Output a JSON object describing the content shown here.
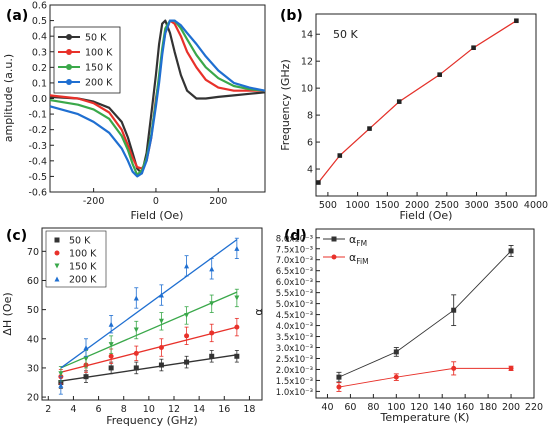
{
  "chart_data": [
    {
      "id": "a",
      "panel_label": "(a)",
      "type": "line",
      "xlabel": "Field (Oe)",
      "ylabel": "amplitude (a.u.)",
      "xlim": [
        -340,
        350
      ],
      "ylim": [
        -0.6,
        0.6
      ],
      "xticks": [
        -200,
        0,
        200
      ],
      "yticks": [
        -0.6,
        -0.5,
        -0.4,
        -0.3,
        -0.2,
        -0.1,
        0.0,
        0.1,
        0.2,
        0.3,
        0.4,
        0.5,
        0.6
      ],
      "ytick_labels": [
        "-0.6",
        "-0.5",
        "-0.4",
        "-0.3",
        "-0.2",
        "-0.1",
        "0.0",
        "0.1",
        "0.2",
        "0.3",
        "0.4",
        "0.5",
        "0.6"
      ],
      "legend_position": "top-left",
      "series": [
        {
          "name": "50 K",
          "color": "#333333",
          "x": [
            -340,
            -250,
            -200,
            -150,
            -110,
            -90,
            -75,
            -60,
            -45,
            -30,
            -15,
            0,
            10,
            20,
            30,
            45,
            60,
            80,
            100,
            130,
            160,
            200,
            250,
            300,
            350
          ],
          "y": [
            0.01,
            0.0,
            -0.02,
            -0.06,
            -0.15,
            -0.25,
            -0.35,
            -0.45,
            -0.48,
            -0.35,
            -0.1,
            0.15,
            0.35,
            0.48,
            0.5,
            0.42,
            0.3,
            0.15,
            0.05,
            0.0,
            0.0,
            0.01,
            0.02,
            0.03,
            0.04
          ]
        },
        {
          "name": "100 K",
          "color": "#e8312a",
          "x": [
            -340,
            -250,
            -200,
            -150,
            -110,
            -90,
            -75,
            -60,
            -45,
            -30,
            -15,
            0,
            10,
            20,
            30,
            45,
            60,
            80,
            100,
            130,
            160,
            200,
            250,
            300,
            350
          ],
          "y": [
            0.02,
            0.0,
            -0.03,
            -0.09,
            -0.2,
            -0.3,
            -0.38,
            -0.44,
            -0.45,
            -0.4,
            -0.25,
            0.0,
            0.12,
            0.3,
            0.42,
            0.5,
            0.48,
            0.4,
            0.3,
            0.2,
            0.12,
            0.07,
            0.05,
            0.05,
            0.05
          ]
        },
        {
          "name": "150 K",
          "color": "#3aa84a",
          "x": [
            -340,
            -250,
            -200,
            -150,
            -110,
            -90,
            -75,
            -60,
            -45,
            -30,
            -15,
            0,
            10,
            20,
            30,
            45,
            60,
            80,
            100,
            130,
            160,
            200,
            250,
            300,
            350
          ],
          "y": [
            -0.01,
            -0.04,
            -0.07,
            -0.13,
            -0.24,
            -0.33,
            -0.42,
            -0.49,
            -0.46,
            -0.38,
            -0.23,
            -0.02,
            0.15,
            0.32,
            0.45,
            0.5,
            0.5,
            0.45,
            0.38,
            0.28,
            0.2,
            0.13,
            0.08,
            0.06,
            0.05
          ]
        },
        {
          "name": "200 K",
          "color": "#1f6fd1",
          "x": [
            -340,
            -250,
            -200,
            -150,
            -110,
            -90,
            -75,
            -60,
            -45,
            -30,
            -15,
            0,
            10,
            20,
            30,
            45,
            60,
            80,
            100,
            130,
            160,
            200,
            250,
            300,
            350
          ],
          "y": [
            -0.05,
            -0.1,
            -0.15,
            -0.22,
            -0.32,
            -0.4,
            -0.47,
            -0.5,
            -0.48,
            -0.4,
            -0.25,
            -0.05,
            0.1,
            0.28,
            0.42,
            0.5,
            0.5,
            0.47,
            0.42,
            0.35,
            0.27,
            0.18,
            0.1,
            0.07,
            0.05
          ]
        }
      ]
    },
    {
      "id": "b",
      "panel_label": "(b)",
      "type": "line",
      "annotation": "50 K",
      "xlabel": "Field (Oe)",
      "ylabel": "Frequency (GHz)",
      "xlim": [
        300,
        4000
      ],
      "ylim": [
        2,
        15.5
      ],
      "xticks": [
        500,
        1000,
        1500,
        2000,
        2500,
        3000,
        3500,
        4000
      ],
      "yticks": [
        4,
        6,
        8,
        10,
        12,
        14
      ],
      "series": [
        {
          "name": "",
          "color": "#222222",
          "marker": "square",
          "x": [
            340,
            700,
            1200,
            1700,
            2380,
            2950,
            3670
          ],
          "y": [
            3,
            5,
            7,
            9,
            11,
            13,
            15
          ]
        },
        {
          "name": "",
          "color": "#e8312a",
          "marker": "none",
          "x": [
            340,
            700,
            1200,
            1700,
            2380,
            2950,
            3670
          ],
          "y": [
            3,
            5,
            7,
            9,
            11,
            13,
            15
          ]
        }
      ]
    },
    {
      "id": "c",
      "panel_label": "(c)",
      "type": "scatter",
      "xlabel": "Frequency (GHz)",
      "ylabel": "ΔH (Oe)",
      "xlim": [
        1.5,
        19
      ],
      "ylim": [
        19,
        78
      ],
      "xticks": [
        2,
        4,
        6,
        8,
        10,
        12,
        14,
        16,
        18
      ],
      "yticks": [
        20,
        30,
        40,
        50,
        60,
        70
      ],
      "legend_position": "top-left",
      "series": [
        {
          "name": "50 K",
          "color": "#333333",
          "marker": "square",
          "x": [
            3,
            5,
            7,
            9,
            11,
            13,
            15,
            17
          ],
          "y": [
            25,
            27,
            30,
            30,
            31,
            32,
            34,
            34
          ],
          "err": [
            2,
            2,
            2,
            2,
            2,
            2,
            2,
            2
          ],
          "fit": [
            [
              3,
              25.5
            ],
            [
              17,
              34.5
            ]
          ]
        },
        {
          "name": "100 K",
          "color": "#e8312a",
          "marker": "circle",
          "x": [
            3,
            5,
            7,
            9,
            11,
            13,
            15,
            17
          ],
          "y": [
            27,
            31,
            34,
            35,
            37,
            41,
            42,
            44
          ],
          "err": [
            2.5,
            2.5,
            2.5,
            2.5,
            3,
            3,
            3,
            3
          ],
          "fit": [
            [
              3,
              28.5
            ],
            [
              17,
              44
            ]
          ]
        },
        {
          "name": "150 K",
          "color": "#3aa84a",
          "marker": "triangle-down",
          "x": [
            3,
            5,
            7,
            9,
            11,
            13,
            15,
            17
          ],
          "y": [
            28,
            33,
            38,
            43,
            46,
            48,
            52,
            54
          ],
          "err": [
            2.5,
            3,
            3,
            3,
            3,
            3,
            3,
            3
          ],
          "fit": [
            [
              3,
              30
            ],
            [
              17,
              56
            ]
          ]
        },
        {
          "name": "200 K",
          "color": "#1f6fd1",
          "marker": "triangle-up",
          "x": [
            3,
            5,
            7,
            9,
            11,
            13,
            15,
            17
          ],
          "y": [
            24,
            37,
            45,
            54,
            55,
            65,
            64,
            71
          ],
          "err": [
            3,
            3,
            3,
            3.5,
            3.5,
            3.5,
            3.5,
            3.5
          ],
          "fit": [
            [
              3,
              30
            ],
            [
              17,
              74
            ]
          ]
        }
      ]
    },
    {
      "id": "d",
      "panel_label": "(d)",
      "type": "line",
      "xlabel": "Temperature (K)",
      "ylabel": "α",
      "xlim": [
        30,
        220
      ],
      "ylim": [
        0.0007,
        0.0084
      ],
      "xticks": [
        40,
        60,
        80,
        100,
        120,
        140,
        160,
        180,
        200,
        220
      ],
      "yticks": [
        0.001,
        0.0015,
        0.002,
        0.0025,
        0.003,
        0.0035,
        0.004,
        0.0045,
        0.005,
        0.0055,
        0.006,
        0.0065,
        0.007,
        0.0075,
        0.008
      ],
      "ytick_labels": [
        "1.0x10⁻³",
        "1.5x10⁻³",
        "2.0x10⁻³",
        "2.5x10⁻³",
        "3.0x10⁻³",
        "3.5x10⁻³",
        "4.0x10⁻³",
        "4.5x10⁻³",
        "5.0x10⁻³",
        "5.5x10⁻³",
        "6.0x10⁻³",
        "6.5x10⁻³",
        "7.0x10⁻³",
        "7.5x10⁻³",
        "8.0x10⁻³"
      ],
      "legend_position": "top-left",
      "series": [
        {
          "name": "α_FM",
          "name_main": "α",
          "name_sub": "FM",
          "color": "#333333",
          "marker": "square",
          "x": [
            50,
            100,
            150,
            200
          ],
          "y": [
            0.00165,
            0.0028,
            0.0047,
            0.0074
          ],
          "err": [
            0.00022,
            0.0002,
            0.0007,
            0.00025
          ]
        },
        {
          "name": "α_FiM",
          "name_main": "α",
          "name_sub": "FiM",
          "color": "#e8312a",
          "marker": "circle",
          "x": [
            50,
            100,
            150,
            200
          ],
          "y": [
            0.0012,
            0.00165,
            0.00205,
            0.00205
          ],
          "err": [
            0.0002,
            0.00015,
            0.0003,
            0.0001
          ]
        }
      ]
    }
  ]
}
